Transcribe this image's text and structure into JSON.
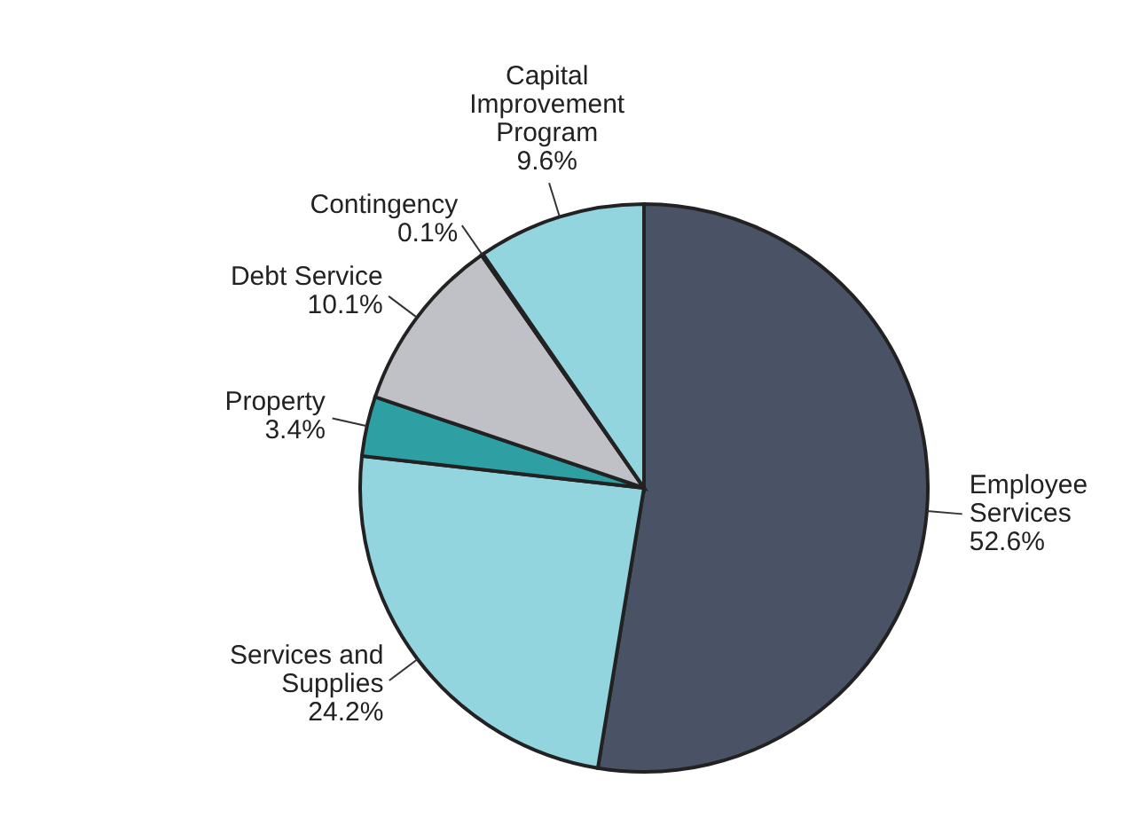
{
  "chart_data": {
    "type": "pie",
    "categories": [
      "Employee Services",
      "Services and Supplies",
      "Property",
      "Debt Service",
      "Contingency",
      "Capital Improvement Program"
    ],
    "values": [
      52.6,
      24.2,
      3.4,
      10.1,
      0.1,
      9.6
    ],
    "colors": [
      "#4a5366",
      "#92d5df",
      "#2e9fa3",
      "#c0c1c6",
      "#6d7a8c",
      "#92d5df"
    ],
    "value_labels": [
      "52.6%",
      "24.2%",
      "3.4%",
      "10.1%",
      "0.1%",
      "9.6%"
    ]
  }
}
